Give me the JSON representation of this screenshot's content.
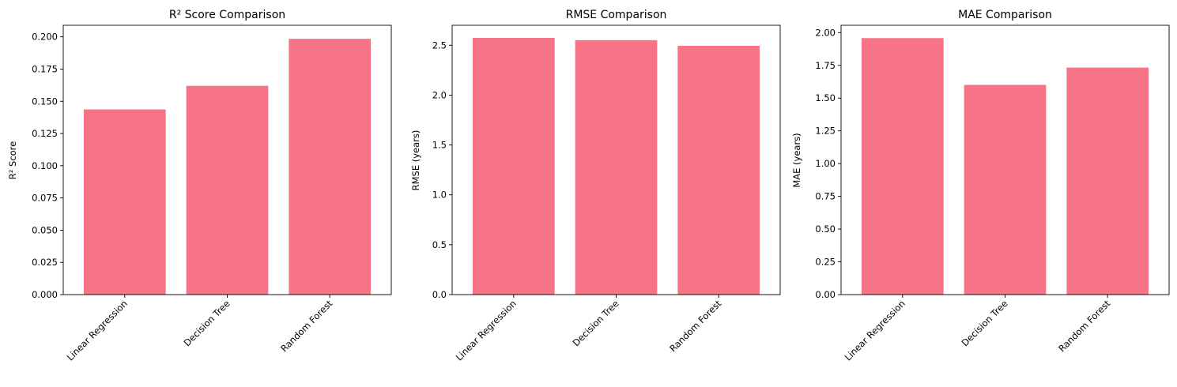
{
  "bar_color": "#f67388",
  "chart_data": [
    {
      "type": "bar",
      "title": "R² Score Comparison",
      "xlabel": "",
      "ylabel": "R² Score",
      "categories": [
        "Linear Regression",
        "Decision Tree",
        "Random Forest"
      ],
      "values": [
        0.1437,
        0.162,
        0.1985
      ],
      "ylim": [
        0,
        0.209
      ],
      "yticks": [
        0.0,
        0.025,
        0.05,
        0.075,
        0.1,
        0.125,
        0.15,
        0.175,
        0.2
      ],
      "ytick_labels": [
        "0.000",
        "0.025",
        "0.050",
        "0.075",
        "0.100",
        "0.125",
        "0.150",
        "0.175",
        "0.200"
      ],
      "grid": false
    },
    {
      "type": "bar",
      "title": "RMSE Comparison",
      "xlabel": "",
      "ylabel": "RMSE (years)",
      "categories": [
        "Linear Regression",
        "Decision Tree",
        "Random Forest"
      ],
      "values": [
        2.573,
        2.551,
        2.494
      ],
      "ylim": [
        0,
        2.7
      ],
      "yticks": [
        0.0,
        0.5,
        1.0,
        1.5,
        2.0,
        2.5
      ],
      "ytick_labels": [
        "0.0",
        "0.5",
        "1.0",
        "1.5",
        "2.0",
        "2.5"
      ],
      "grid": false
    },
    {
      "type": "bar",
      "title": "MAE Comparison",
      "xlabel": "",
      "ylabel": "MAE (years)",
      "categories": [
        "Linear Regression",
        "Decision Tree",
        "Random Forest"
      ],
      "values": [
        1.958,
        1.601,
        1.733
      ],
      "ylim": [
        0,
        2.056
      ],
      "yticks": [
        0.0,
        0.25,
        0.5,
        0.75,
        1.0,
        1.25,
        1.5,
        1.75,
        2.0
      ],
      "ytick_labels": [
        "0.00",
        "0.25",
        "0.50",
        "0.75",
        "1.00",
        "1.25",
        "1.50",
        "1.75",
        "2.00"
      ],
      "grid": false
    }
  ]
}
